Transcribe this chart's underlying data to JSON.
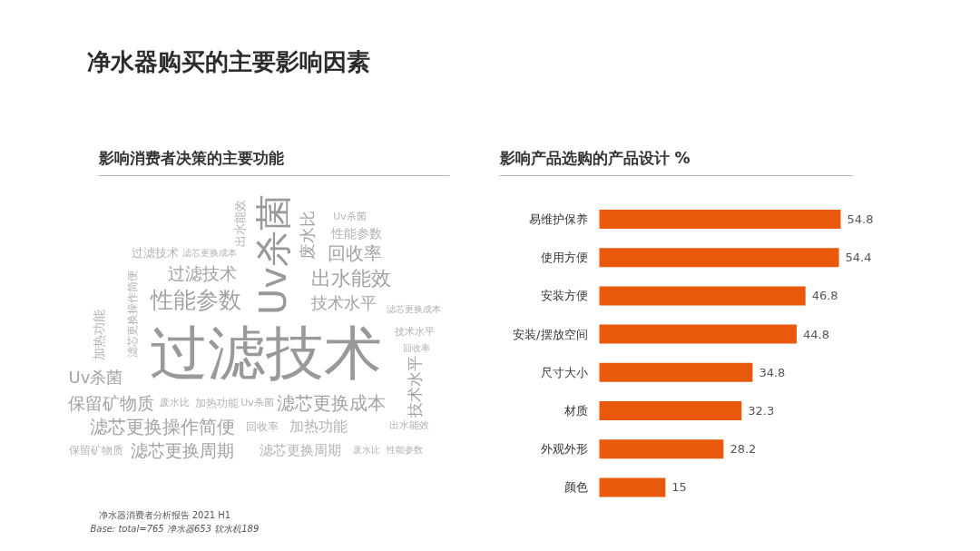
{
  "chart_data": [
    {
      "type": "other",
      "title": "净水器购买的主要影响因素",
      "subtitle": "影响消费者决策的主要功能",
      "annotations": [
        "过滤技术",
        "Uv杀菌",
        "滤芯更换操作简便",
        "滤芯更换周期",
        "滤芯更换成本",
        "性能参数",
        "保留矿物质",
        "出水能效",
        "回收率",
        "废水比",
        "技术水平",
        "加热功能",
        "技术水平",
        "过滤技术",
        "Uv杀菌",
        "滤芯更换周期",
        "性能参数",
        "保留矿物质",
        "出水能效",
        "加热功能",
        "滤芯更换操作简便",
        "过滤技术",
        "回收率",
        "Uv杀菌",
        "技术水平",
        "滤芯更换成本",
        "加热功能",
        "出水能效",
        "Uv杀菌",
        "废水比",
        "滤芯更换成本",
        "废水比",
        "性能参数",
        "回收率"
      ]
    },
    {
      "type": "bar",
      "orientation": "horizontal",
      "title": "影响产品选购的产品设计 %",
      "categories": [
        "易维护保养",
        "使用方便",
        "安装方便",
        "安装/摆放空间",
        "尺寸大小",
        "材质",
        "外观外形",
        "颜色"
      ],
      "values": [
        54.8,
        54.4,
        46.8,
        44.8,
        34.8,
        32.3,
        28.2,
        15
      ],
      "color": "#e8590c",
      "data_labels": true,
      "annotations": [
        "净水器消费者分析报告 2021 H1",
        "Base:  total=765  净水器653 软水机189"
      ]
    }
  ]
}
